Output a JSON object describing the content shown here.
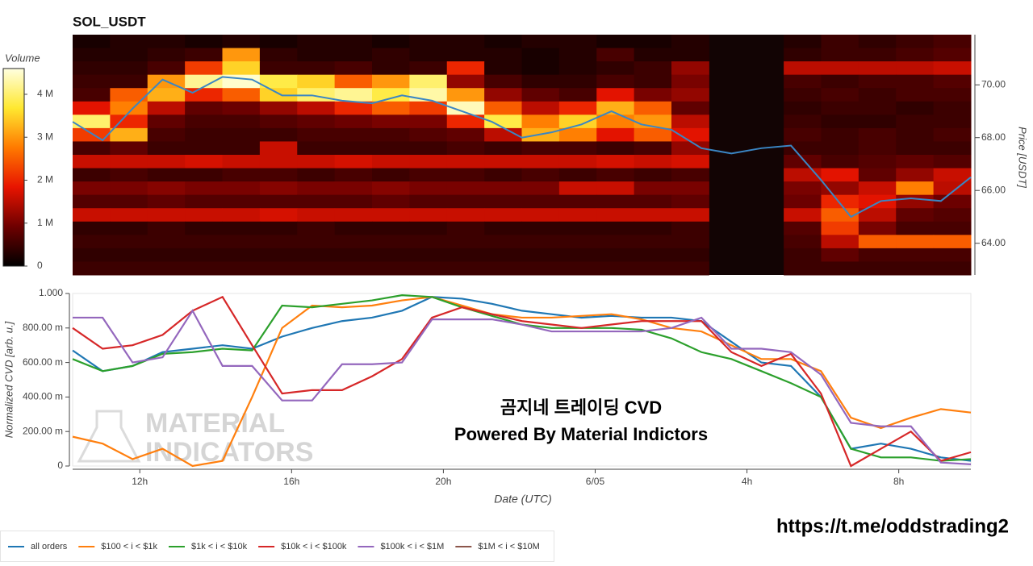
{
  "chart_data": [
    {
      "type": "heatmap",
      "title": "SOL_USDT",
      "colorbar_label": "Volume",
      "y_label": "Price [USDT]",
      "clim": [
        0,
        4.6
      ],
      "cticks": [
        {
          "value": 0,
          "label": "0"
        },
        {
          "value": 1,
          "label": "1 M"
        },
        {
          "value": 2,
          "label": "2 M"
        },
        {
          "value": 3,
          "label": "3 M"
        },
        {
          "value": 4,
          "label": "4 M"
        }
      ],
      "colormap": [
        "#000000",
        "#6e0000",
        "#e81400",
        "#ff7a00",
        "#ffe830",
        "#ffffe0"
      ],
      "xlim": [
        10.23,
        33.9
      ],
      "ylim": [
        62.8,
        71.9
      ],
      "yticks": [
        {
          "value": 64,
          "label": "64.00"
        },
        {
          "value": 66,
          "label": "66.00"
        },
        {
          "value": 68,
          "label": "68.00"
        },
        {
          "value": 70,
          "label": "70.00"
        }
      ],
      "z": [
        [
          0.2,
          0.3,
          0.3,
          0.2,
          0.3,
          0.2,
          0.3,
          0.3,
          0.2,
          0.3,
          0.3,
          0.2,
          0.3,
          0.3,
          0.2,
          0.2,
          0.3,
          null,
          null,
          0.3,
          0.5,
          0.4,
          0.5,
          0.6
        ],
        [
          0.3,
          0.3,
          0.4,
          0.5,
          3.0,
          0.4,
          0.3,
          0.3,
          0.4,
          0.3,
          0.3,
          0.3,
          0.2,
          0.3,
          0.6,
          0.3,
          0.3,
          null,
          null,
          0.4,
          0.5,
          0.5,
          0.6,
          0.7
        ],
        [
          0.4,
          0.4,
          0.6,
          2.2,
          3.5,
          0.5,
          0.5,
          0.6,
          0.4,
          0.5,
          2.0,
          0.3,
          0.2,
          0.3,
          0.4,
          0.5,
          1.2,
          null,
          null,
          1.5,
          1.5,
          1.5,
          1.5,
          1.6
        ],
        [
          0.5,
          0.5,
          3.0,
          4.2,
          4.5,
          3.8,
          3.5,
          2.5,
          3.0,
          4.0,
          1.2,
          0.6,
          0.4,
          0.4,
          0.6,
          0.5,
          1.0,
          null,
          null,
          0.6,
          0.5,
          0.6,
          0.6,
          0.7
        ],
        [
          0.6,
          2.5,
          3.2,
          2.0,
          2.5,
          3.5,
          4.0,
          4.2,
          3.8,
          4.3,
          3.0,
          1.2,
          0.8,
          0.6,
          1.8,
          1.0,
          1.2,
          null,
          null,
          0.5,
          0.6,
          0.5,
          0.6,
          0.6
        ],
        [
          1.8,
          2.8,
          1.5,
          0.8,
          0.9,
          1.2,
          1.5,
          2.0,
          2.5,
          2.2,
          4.4,
          2.5,
          1.5,
          2.0,
          3.2,
          2.5,
          0.8,
          null,
          null,
          0.4,
          0.5,
          0.5,
          0.4,
          0.5
        ],
        [
          4.0,
          2.0,
          0.8,
          0.6,
          0.6,
          0.7,
          0.8,
          0.9,
          1.0,
          1.0,
          2.0,
          3.8,
          2.8,
          3.5,
          2.8,
          3.0,
          1.5,
          null,
          null,
          0.5,
          0.4,
          0.4,
          0.5,
          0.5
        ],
        [
          2.2,
          3.2,
          0.6,
          0.5,
          0.5,
          0.5,
          0.6,
          0.6,
          0.6,
          0.7,
          0.8,
          1.5,
          3.2,
          2.8,
          1.8,
          2.5,
          1.8,
          null,
          null,
          0.6,
          0.5,
          0.6,
          0.5,
          0.6
        ],
        [
          0.6,
          0.8,
          0.5,
          0.5,
          0.5,
          1.6,
          0.5,
          0.5,
          0.5,
          0.5,
          0.6,
          0.5,
          0.6,
          0.6,
          0.5,
          0.6,
          1.2,
          null,
          null,
          0.5,
          0.5,
          0.6,
          0.5,
          0.5
        ],
        [
          1.6,
          1.6,
          1.6,
          1.7,
          1.6,
          1.6,
          1.6,
          1.7,
          1.6,
          1.6,
          1.6,
          1.6,
          1.6,
          1.6,
          1.7,
          1.6,
          1.7,
          null,
          null,
          0.8,
          0.6,
          0.7,
          0.8,
          0.7
        ],
        [
          0.5,
          0.6,
          0.5,
          0.5,
          0.6,
          0.6,
          0.5,
          0.6,
          0.5,
          0.6,
          0.6,
          0.5,
          0.6,
          0.5,
          0.6,
          0.5,
          0.6,
          null,
          null,
          1.5,
          1.8,
          0.8,
          1.2,
          1.6
        ],
        [
          1.0,
          1.0,
          1.1,
          1.0,
          1.0,
          1.1,
          1.0,
          1.0,
          1.1,
          1.0,
          1.0,
          1.0,
          1.0,
          1.6,
          1.6,
          1.0,
          1.0,
          null,
          null,
          1.0,
          1.2,
          1.6,
          2.8,
          1.5
        ],
        [
          0.7,
          0.7,
          0.8,
          0.7,
          0.7,
          0.7,
          0.7,
          0.7,
          0.8,
          0.7,
          0.7,
          0.7,
          0.7,
          0.7,
          0.7,
          0.7,
          0.8,
          null,
          null,
          0.9,
          2.0,
          1.8,
          1.2,
          0.9
        ],
        [
          1.6,
          1.6,
          1.6,
          1.6,
          1.6,
          1.7,
          1.6,
          1.6,
          1.6,
          1.6,
          1.6,
          1.6,
          1.6,
          1.6,
          1.6,
          1.6,
          1.6,
          null,
          null,
          1.6,
          2.5,
          1.5,
          0.8,
          0.7
        ],
        [
          0.4,
          0.4,
          0.5,
          0.4,
          0.4,
          0.4,
          0.5,
          0.4,
          0.4,
          0.4,
          0.5,
          0.4,
          0.4,
          0.4,
          0.4,
          0.4,
          0.5,
          null,
          null,
          0.7,
          2.2,
          1.0,
          0.6,
          0.6
        ],
        [
          0.5,
          0.5,
          0.5,
          0.5,
          0.5,
          0.5,
          0.5,
          0.5,
          0.5,
          0.5,
          0.5,
          0.5,
          0.5,
          0.5,
          0.5,
          0.5,
          0.5,
          null,
          null,
          0.6,
          1.5,
          2.5,
          2.5,
          2.5
        ],
        [
          0.4,
          0.4,
          0.4,
          0.4,
          0.4,
          0.4,
          0.4,
          0.4,
          0.4,
          0.4,
          0.4,
          0.4,
          0.4,
          0.4,
          0.4,
          0.4,
          0.4,
          null,
          null,
          0.5,
          0.8,
          0.6,
          0.6,
          0.6
        ],
        [
          0.5,
          0.5,
          0.5,
          0.5,
          0.5,
          0.5,
          0.5,
          0.5,
          0.5,
          0.5,
          0.5,
          0.5,
          0.5,
          0.5,
          0.5,
          0.5,
          0.5,
          null,
          null,
          0.5,
          0.5,
          0.5,
          0.5,
          0.5
        ]
      ],
      "line": {
        "color": "#3a86c4",
        "x": [
          10.23,
          11.02,
          11.81,
          12.6,
          13.39,
          14.18,
          14.96,
          15.75,
          16.54,
          17.33,
          18.12,
          18.91,
          19.7,
          20.49,
          21.28,
          22.07,
          22.85,
          23.64,
          24.43,
          25.22,
          26.01,
          26.8,
          27.59,
          28.38,
          29.16,
          29.95,
          30.74,
          31.53,
          32.32,
          33.11,
          33.9
        ],
        "values": [
          68.6,
          67.9,
          69.1,
          70.2,
          69.7,
          70.3,
          70.2,
          69.6,
          69.6,
          69.4,
          69.3,
          69.6,
          69.4,
          69.0,
          68.6,
          68.0,
          68.2,
          68.5,
          69.0,
          68.5,
          68.3,
          67.6,
          67.4,
          67.6,
          67.7,
          66.4,
          65.0,
          65.6,
          65.7,
          65.6,
          66.5
        ]
      }
    },
    {
      "type": "line",
      "x_label": "Date (UTC)",
      "y_label": "Normalized CVD [arb. u.]",
      "xlim": [
        10.23,
        33.9
      ],
      "ylim": [
        0,
        1
      ],
      "xticks": [
        {
          "value": 12,
          "label": "12h"
        },
        {
          "value": 16,
          "label": "16h"
        },
        {
          "value": 20,
          "label": "20h"
        },
        {
          "value": 24,
          "label": "6/05"
        },
        {
          "value": 28,
          "label": "4h"
        },
        {
          "value": 32,
          "label": "8h"
        }
      ],
      "yticks": [
        {
          "value": 0,
          "label": "0"
        },
        {
          "value": 0.2,
          "label": "200.00 m"
        },
        {
          "value": 0.4,
          "label": "400.00 m"
        },
        {
          "value": 0.6,
          "label": "600.00 m"
        },
        {
          "value": 0.8,
          "label": "800.00 m"
        },
        {
          "value": 1,
          "label": "1.000"
        }
      ],
      "annotations": [
        "곰지네 트레이딩 CVD",
        "Powered By Material Indictors"
      ],
      "watermark": [
        "MATERIAL",
        "INDICATORS"
      ],
      "x": [
        10.23,
        11.02,
        11.81,
        12.6,
        13.39,
        14.18,
        14.96,
        15.75,
        16.54,
        17.33,
        18.12,
        18.91,
        19.7,
        20.49,
        21.28,
        22.07,
        22.85,
        23.64,
        24.43,
        25.22,
        26.01,
        26.8,
        27.59,
        28.38,
        29.16,
        29.95,
        30.74,
        31.53,
        32.32,
        33.11,
        33.9
      ],
      "series": [
        {
          "name": "all orders",
          "color": "#1f77b4",
          "values": [
            0.67,
            0.55,
            0.58,
            0.66,
            0.68,
            0.7,
            0.68,
            0.75,
            0.8,
            0.84,
            0.86,
            0.9,
            0.98,
            0.97,
            0.94,
            0.9,
            0.88,
            0.86,
            0.87,
            0.86,
            0.86,
            0.84,
            0.72,
            0.6,
            0.58,
            0.4,
            0.1,
            0.13,
            0.1,
            0.05,
            0.03
          ]
        },
        {
          "name": "$100 < i < $1k",
          "color": "#ff7f0e",
          "values": [
            0.17,
            0.13,
            0.04,
            0.1,
            0.0,
            0.03,
            0.4,
            0.8,
            0.93,
            0.92,
            0.93,
            0.96,
            0.98,
            0.93,
            0.88,
            0.86,
            0.86,
            0.87,
            0.88,
            0.85,
            0.8,
            0.78,
            0.7,
            0.62,
            0.62,
            0.55,
            0.28,
            0.22,
            0.28,
            0.33,
            0.31
          ]
        },
        {
          "name": "$1k < i < $10k",
          "color": "#2ca02c",
          "values": [
            0.62,
            0.55,
            0.58,
            0.65,
            0.66,
            0.68,
            0.67,
            0.93,
            0.92,
            0.94,
            0.96,
            0.99,
            0.98,
            0.92,
            0.87,
            0.82,
            0.8,
            0.8,
            0.8,
            0.79,
            0.74,
            0.66,
            0.62,
            0.55,
            0.48,
            0.4,
            0.1,
            0.05,
            0.05,
            0.03,
            0.04
          ]
        },
        {
          "name": "$10k < i < $100k",
          "color": "#d62728",
          "values": [
            0.8,
            0.68,
            0.7,
            0.76,
            0.9,
            0.98,
            0.7,
            0.42,
            0.44,
            0.44,
            0.52,
            0.62,
            0.86,
            0.92,
            0.88,
            0.84,
            0.82,
            0.8,
            0.82,
            0.84,
            0.84,
            0.84,
            0.66,
            0.58,
            0.65,
            0.42,
            0.0,
            0.1,
            0.2,
            0.03,
            0.08
          ]
        },
        {
          "name": "$100k < i < $1M",
          "color": "#9467bd",
          "values": [
            0.86,
            0.86,
            0.6,
            0.63,
            0.9,
            0.58,
            0.58,
            0.38,
            0.38,
            0.59,
            0.59,
            0.6,
            0.85,
            0.85,
            0.85,
            0.82,
            0.78,
            0.78,
            0.78,
            0.78,
            0.8,
            0.86,
            0.68,
            0.68,
            0.66,
            0.53,
            0.25,
            0.23,
            0.23,
            0.02,
            0.01
          ]
        },
        {
          "name": "$1M < i < $10M",
          "color": "#8c564b",
          "values": [
            null,
            null,
            null,
            null,
            null,
            null,
            null,
            null,
            null,
            null,
            null,
            null,
            null,
            null,
            null,
            null,
            null,
            null,
            null,
            null,
            null,
            null,
            null,
            null,
            null,
            null,
            null,
            null,
            null,
            null,
            null
          ]
        }
      ]
    }
  ],
  "footer_link": "https://t.me/oddstrading2"
}
